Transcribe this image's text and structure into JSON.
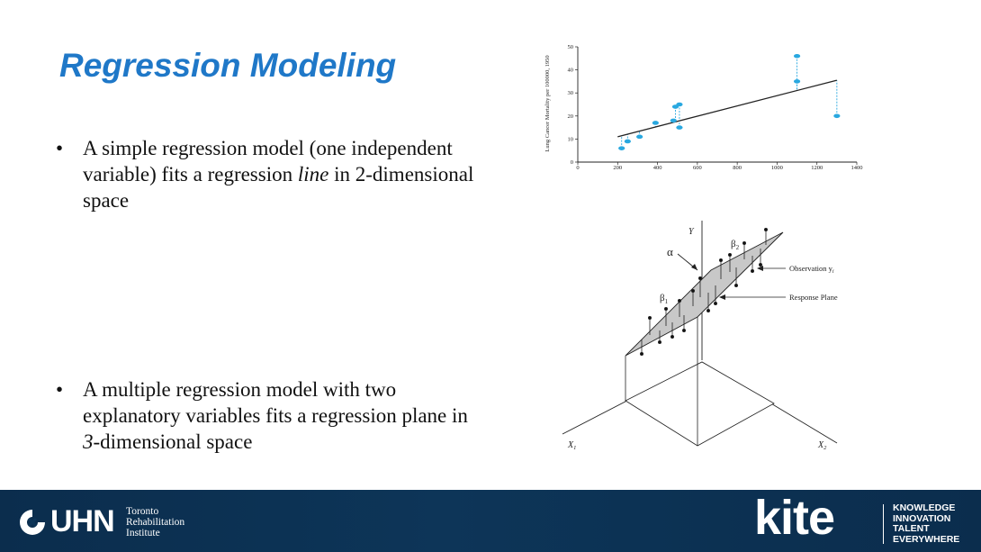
{
  "slide": {
    "title": "Regression Modeling",
    "bullets": [
      {
        "marker": "•",
        "parts": [
          {
            "text": "A simple regression model (one independent variable) fits a regression ",
            "italic": false
          },
          {
            "text": "line",
            "italic": true
          },
          {
            "text": " in 2-dimensional space",
            "italic": false
          }
        ]
      },
      {
        "marker": "•",
        "parts": [
          {
            "text": "A multiple regression model with two explanatory variables fits a regression plane in ",
            "italic": false
          },
          {
            "text": "3",
            "italic": true
          },
          {
            "text": "-dimensional space",
            "italic": false
          }
        ]
      }
    ]
  },
  "chart_data": {
    "type": "scatter",
    "ylabel": "Lung Cancer Mortality per 100000, 1950",
    "xlabel": "",
    "xlim": [
      0,
      1400
    ],
    "ylim": [
      0,
      50
    ],
    "x_ticks": [
      0,
      200,
      400,
      600,
      800,
      1000,
      1200,
      1400
    ],
    "y_ticks": [
      0,
      10,
      20,
      30,
      40,
      50
    ],
    "points": [
      {
        "x": 220,
        "y": 6
      },
      {
        "x": 250,
        "y": 9
      },
      {
        "x": 310,
        "y": 11
      },
      {
        "x": 390,
        "y": 17
      },
      {
        "x": 480,
        "y": 18
      },
      {
        "x": 490,
        "y": 24
      },
      {
        "x": 510,
        "y": 25
      },
      {
        "x": 510,
        "y": 15
      },
      {
        "x": 1100,
        "y": 46
      },
      {
        "x": 1100,
        "y": 35
      },
      {
        "x": 1300,
        "y": 20
      }
    ],
    "fit_line": {
      "x1": 200,
      "y1": 11,
      "x2": 1300,
      "y2": 35.5
    },
    "point_color": "#29a8e0",
    "line_color": "#222222"
  },
  "diagram": {
    "y_label": "Y",
    "x1_label": "X",
    "x1_sub": "1",
    "x2_label": "X",
    "x2_sub": "2",
    "alpha_label": "α",
    "beta1_label": "β",
    "beta1_sub": "1",
    "beta2_label": "β",
    "beta2_sub": "2",
    "observation_label": "Observation y",
    "observation_sub": "i",
    "response_label": "Response Plane"
  },
  "footer": {
    "uhn_name": "UHN",
    "uhn_sub": [
      "Toronto",
      "Rehabilitation",
      "Institute"
    ],
    "kite_name": "kite",
    "kite_tag": [
      "KNOWLEDGE",
      "INNOVATION",
      "TALENT",
      "EVERYWHERE"
    ],
    "colors": {
      "footer_bg": "#0d3558",
      "title": "#1f78c8"
    }
  }
}
